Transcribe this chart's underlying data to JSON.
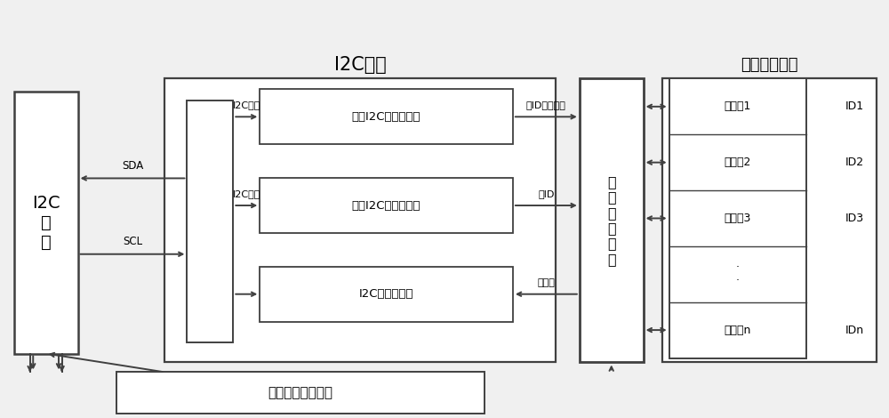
{
  "bg_color": "#f0f0f0",
  "box_color": "#ffffff",
  "border_color": "#404040",
  "title_i2c_slave": "I2C从机",
  "title_reg_stack": "内部寄存器堆",
  "master_label": "I2C\n主\n机",
  "reg1_label": "第一I2C读写寄存器",
  "reg2_label": "第二I2C读写寄存器",
  "reg3_label": "I2C只读寄存器",
  "rw_unit_label": "读\n写\n操\n作\n单\n元",
  "enable_label": "读写使能控制单元",
  "reg_items": [
    "寄存器1",
    "寄存器2",
    "寄存器3",
    "·\n·",
    "寄存器n"
  ],
  "id_items": [
    "ID1",
    "ID2",
    "ID3",
    "",
    "IDn"
  ],
  "arrow_labels": {
    "sda": "SDA",
    "scl": "SCL",
    "i2c_addr1": "I2C地址",
    "i2c_addr2": "I2C地址",
    "write_id": "写ID及写数据",
    "read_id": "读ID",
    "read_data": "读数据"
  }
}
